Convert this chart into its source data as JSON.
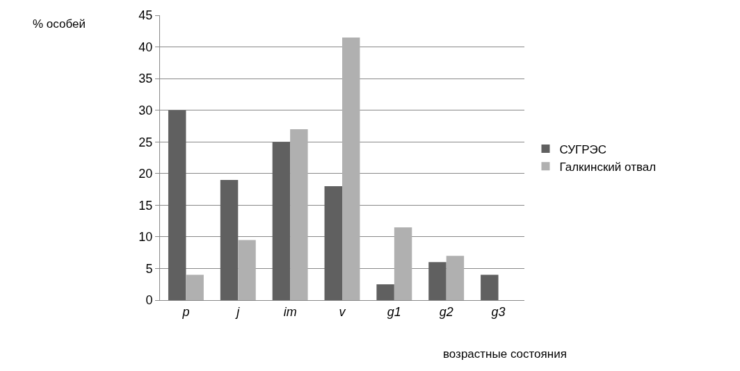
{
  "chart_data": {
    "type": "bar",
    "categories": [
      "p",
      "j",
      "im",
      "v",
      "g1",
      "g2",
      "g3"
    ],
    "series": [
      {
        "name": "СУГРЭС",
        "color": "#606060",
        "values": [
          30,
          19,
          25,
          18,
          2.5,
          6,
          4
        ]
      },
      {
        "name": "Галкинский отвал",
        "color": "#b0b0b0",
        "values": [
          4,
          9.5,
          27,
          41.5,
          11.5,
          7,
          null
        ]
      }
    ],
    "ylabel": "% особей",
    "xlabel": "возрастные состояния",
    "ylim": [
      0,
      45
    ],
    "yticks": [
      0,
      5,
      10,
      15,
      20,
      25,
      30,
      35,
      40,
      45
    ],
    "grid": "y",
    "legend": "right"
  }
}
